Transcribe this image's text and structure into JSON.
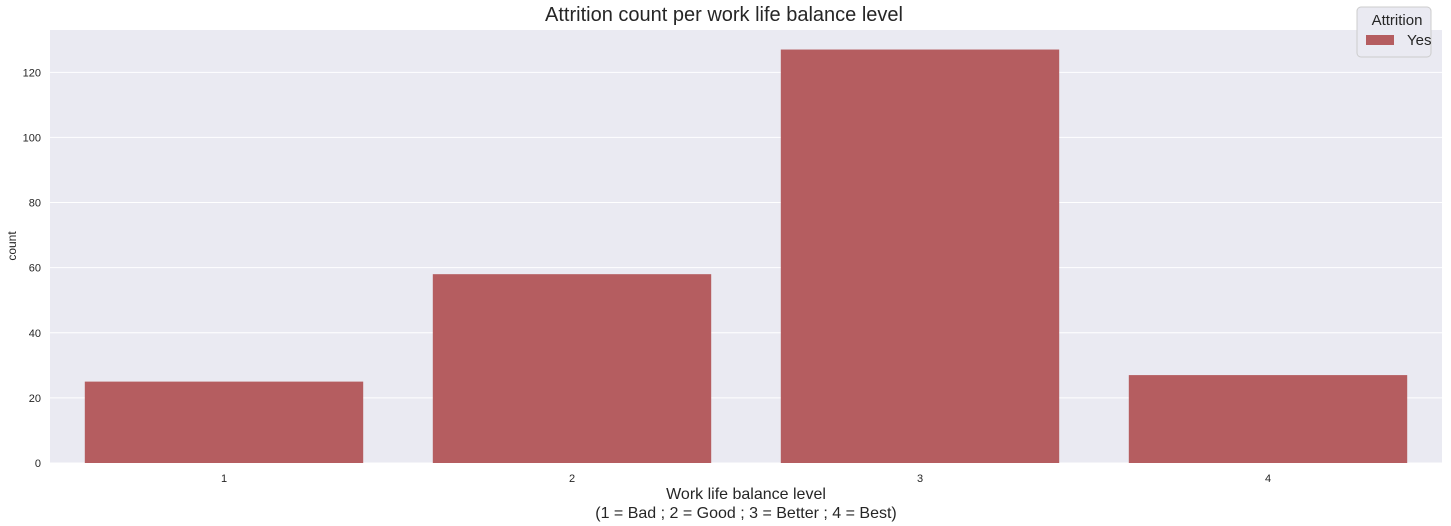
{
  "chart_data": {
    "type": "bar",
    "title": "Attrition count per work life balance level",
    "xlabel_line1": "Work life balance level",
    "xlabel_line2": "(1 = Bad ; 2 = Good ; 3 = Better ; 4 = Best)",
    "ylabel": "count",
    "categories": [
      "1",
      "2",
      "3",
      "4"
    ],
    "series": [
      {
        "name": "Yes",
        "values": [
          25,
          58,
          127,
          27
        ]
      }
    ],
    "ylim": [
      0,
      133
    ],
    "yticks": [
      0,
      20,
      40,
      60,
      80,
      100,
      120
    ],
    "grid": true,
    "legend": {
      "title": "Attrition",
      "position": "top-right"
    },
    "colors": {
      "background": "#eaeaf2",
      "grid": "#ffffff",
      "bar": "#b55d60",
      "text": "#262626"
    }
  }
}
